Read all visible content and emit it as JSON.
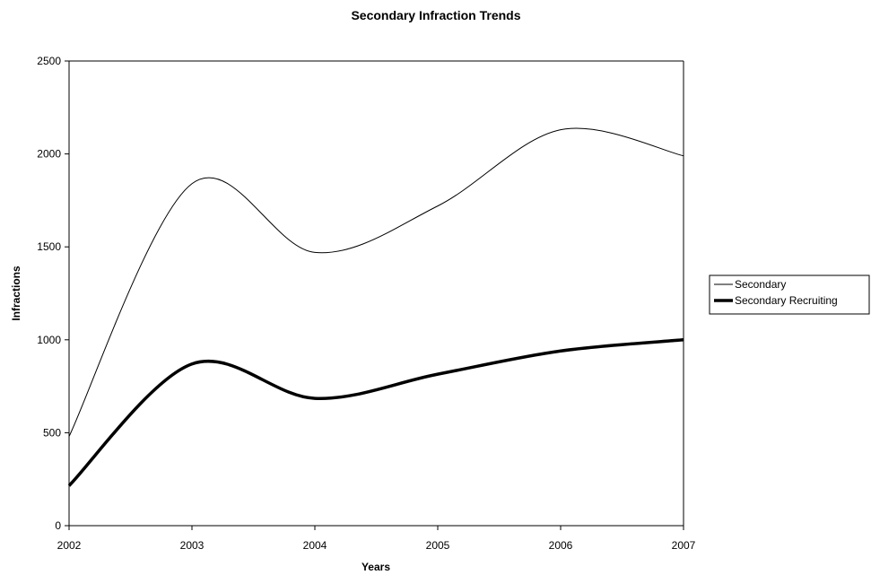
{
  "chart_data": {
    "type": "line",
    "title": "Secondary Infraction Trends",
    "xlabel": "Years",
    "ylabel": "Infractions",
    "x": [
      "2002",
      "2003",
      "2004",
      "2005",
      "2006",
      "2007"
    ],
    "ylim": [
      0,
      2500
    ],
    "yticks": [
      "0",
      "500",
      "1000",
      "1500",
      "2000",
      "2500"
    ],
    "grid": false,
    "legend_position": "right",
    "series": [
      {
        "name": "Secondary",
        "values": [
          480,
          1840,
          1470,
          1720,
          2130,
          1990
        ],
        "color": "#000000",
        "weight": "thin"
      },
      {
        "name": "Secondary Recruiting",
        "values": [
          215,
          870,
          685,
          815,
          940,
          1000
        ],
        "color": "#000000",
        "weight": "thick"
      }
    ]
  }
}
